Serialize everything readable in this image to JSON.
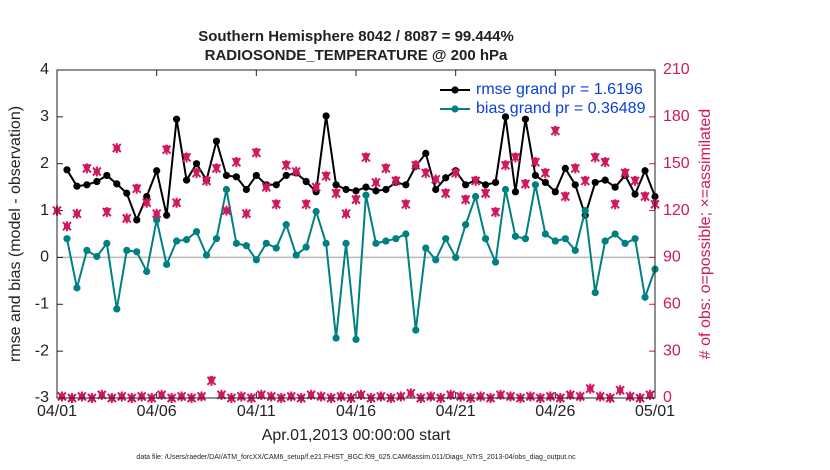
{
  "chart_data": {
    "type": "line",
    "title": "Southern Hemisphere 8042 / 8087 = 99.444%",
    "subtitle": "RADIOSONDE_TEMPERATURE @ 200 hPa",
    "xlabel": "Apr.01,2013 00:00:00 start",
    "ylabel": "rmse and bias (model - observation)",
    "y2label": "# of obs: o=possible; ×=assimilated",
    "footnote": "data file: /Users/raeder/DAI/ATM_forcXX/CAM6_setup/f.e21.FHIST_BGC.f09_025.CAM6assim.011/Diags_NTrS_2013-04/obs_diag_output.nc",
    "xlim": [
      0,
      30
    ],
    "xticks": [
      {
        "value": 0,
        "label": "04/01"
      },
      {
        "value": 5,
        "label": "04/06"
      },
      {
        "value": 10,
        "label": "04/11"
      },
      {
        "value": 15,
        "label": "04/16"
      },
      {
        "value": 20,
        "label": "04/21"
      },
      {
        "value": 25,
        "label": "04/26"
      },
      {
        "value": 30,
        "label": "05/01"
      }
    ],
    "ylim": [
      -3,
      4
    ],
    "yticks": [
      -3,
      -2,
      -1,
      0,
      1,
      2,
      3,
      4
    ],
    "y2lim": [
      0,
      210
    ],
    "y2ticks": [
      0,
      30,
      60,
      90,
      120,
      150,
      180,
      210
    ],
    "y2color": "#d0175f",
    "legend": "upper right",
    "x": [
      0,
      0.5,
      1,
      1.5,
      2,
      2.5,
      3,
      3.5,
      4,
      4.5,
      5,
      5.5,
      6,
      6.5,
      7,
      7.5,
      8,
      8.5,
      9,
      9.5,
      10,
      10.5,
      11,
      11.5,
      12,
      12.5,
      13,
      13.5,
      14,
      14.5,
      15,
      15.5,
      16,
      16.5,
      17,
      17.5,
      18,
      18.5,
      19,
      19.5,
      20,
      20.5,
      21,
      21.5,
      22,
      22.5,
      23,
      23.5,
      24,
      24.5,
      25,
      25.5,
      26,
      26.5,
      27,
      27.5,
      28,
      28.5,
      29,
      29.5,
      30
    ],
    "series": [
      {
        "name": "rmse grand pr = 1.6196",
        "color": "#000000",
        "values": [
          null,
          1.87,
          1.52,
          1.55,
          1.62,
          1.75,
          1.57,
          1.37,
          0.8,
          1.3,
          1.85,
          0.9,
          2.95,
          1.65,
          2.0,
          1.65,
          2.48,
          1.75,
          1.72,
          1.45,
          1.75,
          1.55,
          1.55,
          1.75,
          1.8,
          1.62,
          1.4,
          3.02,
          1.55,
          1.45,
          1.42,
          1.5,
          1.42,
          1.45,
          1.6,
          1.55,
          1.95,
          2.22,
          1.45,
          1.7,
          1.85,
          1.55,
          1.65,
          1.55,
          1.6,
          3.0,
          1.4,
          2.95,
          1.75,
          1.6,
          1.4,
          1.9,
          1.55,
          0.9,
          1.6,
          1.65,
          1.5,
          1.75,
          1.35,
          1.85,
          1.3
        ]
      },
      {
        "name": "bias grand pr = 0.36489",
        "color": "#008080",
        "values": [
          null,
          0.4,
          -0.65,
          0.15,
          0.02,
          0.3,
          -1.1,
          0.15,
          0.12,
          -0.3,
          0.8,
          -0.15,
          0.35,
          0.38,
          0.55,
          0.05,
          0.4,
          1.45,
          0.3,
          0.25,
          -0.05,
          0.3,
          0.2,
          0.7,
          0.05,
          0.22,
          0.98,
          0.3,
          -1.72,
          0.3,
          -1.75,
          1.33,
          0.3,
          0.35,
          0.4,
          0.5,
          -1.55,
          0.2,
          -0.05,
          0.4,
          0.0,
          0.7,
          1.3,
          0.4,
          -0.1,
          1.45,
          0.45,
          0.4,
          1.55,
          0.5,
          0.35,
          0.4,
          0.15,
          1.0,
          -0.75,
          0.35,
          0.5,
          0.3,
          0.4,
          -0.85,
          -0.25
        ]
      },
      {
        "color": "#d0175f",
        "marker": "o",
        "axis": "y2",
        "x": [
          0,
          0.25,
          0.5,
          0.75,
          1,
          1.25,
          1.5,
          1.75,
          2,
          2.25,
          2.5,
          2.75,
          3,
          3.25,
          3.5,
          3.75,
          4,
          4.25,
          4.5,
          4.75,
          5,
          5.25,
          5.5,
          5.75,
          6,
          6.25,
          6.5,
          6.75,
          7,
          7.25,
          7.5,
          7.75,
          8,
          8.25,
          8.5,
          8.75,
          9,
          9.25,
          9.5,
          9.75,
          10,
          10.25,
          10.5,
          10.75,
          11,
          11.25,
          11.5,
          11.75,
          12,
          12.25,
          12.5,
          12.75,
          13,
          13.25,
          13.5,
          13.75,
          14,
          14.25,
          14.5,
          14.75,
          15,
          15.25,
          15.5,
          15.75,
          16,
          16.25,
          16.5,
          16.75,
          17,
          17.25,
          17.5,
          17.75,
          18,
          18.25,
          18.5,
          18.75,
          19,
          19.25,
          19.5,
          19.75,
          20,
          20.25,
          20.5,
          20.75,
          21,
          21.25,
          21.5,
          21.75,
          22,
          22.25,
          22.5,
          22.75,
          23,
          23.25,
          23.5,
          23.75,
          24,
          24.25,
          24.5,
          24.75,
          25,
          25.25,
          25.5,
          25.75,
          26,
          26.25,
          26.5,
          26.75,
          27,
          27.25,
          27.5,
          27.75,
          28,
          28.25,
          28.5,
          28.75,
          29,
          29.25,
          29.5,
          29.75,
          30
        ],
        "values": [
          120,
          1,
          110,
          0,
          118,
          1,
          148,
          0,
          145,
          2,
          120,
          0,
          160,
          1,
          115,
          0,
          135,
          1,
          125,
          0,
          118,
          2,
          160,
          0,
          125,
          1,
          155,
          0,
          145,
          1,
          140,
          12,
          148,
          2,
          120,
          0,
          152,
          1,
          118,
          0,
          158,
          2,
          135,
          1,
          125,
          0,
          150,
          1,
          145,
          0,
          125,
          2,
          135,
          1,
          143,
          0,
          132,
          1,
          118,
          0,
          128,
          2,
          155,
          0,
          138,
          1,
          148,
          0,
          140,
          1,
          125,
          3,
          150,
          0,
          145,
          1,
          140,
          0,
          132,
          2,
          145,
          1,
          128,
          0,
          140,
          1,
          132,
          0,
          120,
          2,
          150,
          1,
          155,
          0,
          138,
          1,
          152,
          0,
          145,
          1,
          172,
          0,
          130,
          2,
          148,
          1,
          140,
          6,
          155,
          1,
          152,
          0,
          125,
          5,
          145,
          1,
          140,
          0,
          130,
          2,
          125
        ]
      },
      {
        "color": "#d0175f",
        "marker": "x",
        "axis": "y2",
        "x": [
          0,
          0.25,
          0.5,
          0.75,
          1,
          1.25,
          1.5,
          1.75,
          2,
          2.25,
          2.5,
          2.75,
          3,
          3.25,
          3.5,
          3.75,
          4,
          4.25,
          4.5,
          4.75,
          5,
          5.25,
          5.5,
          5.75,
          6,
          6.25,
          6.5,
          6.75,
          7,
          7.25,
          7.5,
          7.75,
          8,
          8.25,
          8.5,
          8.75,
          9,
          9.25,
          9.5,
          9.75,
          10,
          10.25,
          10.5,
          10.75,
          11,
          11.25,
          11.5,
          11.75,
          12,
          12.25,
          12.5,
          12.75,
          13,
          13.25,
          13.5,
          13.75,
          14,
          14.25,
          14.5,
          14.75,
          15,
          15.25,
          15.5,
          15.75,
          16,
          16.25,
          16.5,
          16.75,
          17,
          17.25,
          17.5,
          17.75,
          18,
          18.25,
          18.5,
          18.75,
          19,
          19.25,
          19.5,
          19.75,
          20,
          20.25,
          20.5,
          20.75,
          21,
          21.25,
          21.5,
          21.75,
          22,
          22.25,
          22.5,
          22.75,
          23,
          23.25,
          23.5,
          23.75,
          24,
          24.25,
          24.5,
          24.75,
          25,
          25.25,
          25.5,
          25.75,
          26,
          26.25,
          26.5,
          26.75,
          27,
          27.25,
          27.5,
          27.75,
          28,
          28.25,
          28.5,
          28.75,
          29,
          29.25,
          29.5,
          29.75,
          30
        ],
        "values": [
          120,
          1,
          110,
          0,
          118,
          1,
          147,
          0,
          145,
          2,
          119,
          0,
          160,
          1,
          115,
          0,
          134,
          1,
          125,
          0,
          118,
          2,
          159,
          0,
          125,
          1,
          154,
          0,
          144,
          1,
          139,
          11,
          147,
          2,
          120,
          0,
          151,
          1,
          118,
          0,
          157,
          2,
          135,
          1,
          124,
          0,
          149,
          1,
          145,
          0,
          124,
          2,
          135,
          1,
          142,
          0,
          131,
          1,
          118,
          0,
          127,
          2,
          154,
          0,
          138,
          1,
          147,
          0,
          139,
          1,
          124,
          3,
          149,
          0,
          144,
          1,
          140,
          0,
          131,
          2,
          144,
          1,
          127,
          0,
          139,
          1,
          131,
          0,
          119,
          2,
          149,
          1,
          154,
          0,
          137,
          1,
          151,
          0,
          144,
          1,
          171,
          0,
          129,
          2,
          147,
          1,
          139,
          6,
          154,
          1,
          151,
          0,
          124,
          5,
          144,
          1,
          139,
          0,
          129,
          2,
          124
        ]
      }
    ]
  }
}
